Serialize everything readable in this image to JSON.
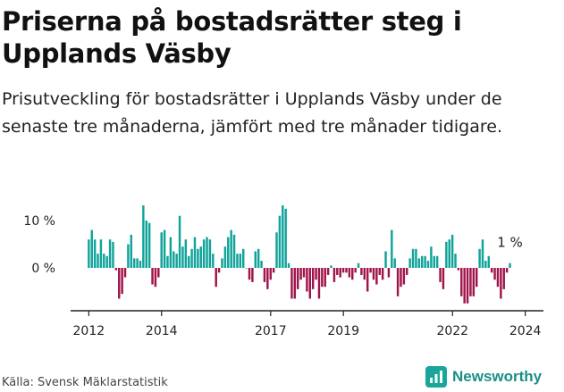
{
  "title": "Priserna på bostadsrätter steg i Upplands Väsby",
  "subtitle": "Prisutveckling för bostadsrätter i Upplands Väsby under de senaste tre månaderna, jämfört med tre månader tidigare.",
  "source": "Källa: Svensk Mäklarstatistik",
  "brand": "Newsworthy",
  "colors": {
    "positive": "#0fa39a",
    "negative": "#a0144a",
    "axis": "#222222",
    "brand": "#1aa59b"
  },
  "chart_data": {
    "type": "bar",
    "title": "Priserna på bostadsrätter steg i Upplands Väsby",
    "ylabel": "",
    "xlabel": "",
    "ylim": [
      -9,
      15
    ],
    "y_ticks": [
      0,
      10
    ],
    "y_tick_labels": [
      "0 %",
      "10 %"
    ],
    "x_range": [
      2011.5,
      2024.5
    ],
    "x_ticks": [
      2012,
      2014,
      2017,
      2019,
      2022,
      2024
    ],
    "x_tick_labels": [
      "2012",
      "2014",
      "2017",
      "2019",
      "2022",
      "2024"
    ],
    "last_label": "1 %",
    "start": 2012.0,
    "step": 0.0833,
    "values": [
      6,
      8,
      6,
      3,
      6,
      3,
      2.5,
      6,
      5.5,
      -0.5,
      -6.5,
      -5.5,
      -2,
      5,
      7,
      2,
      2,
      1.5,
      14,
      10,
      9.5,
      -3.5,
      -4,
      -2,
      7.5,
      8,
      2.5,
      6.5,
      3.5,
      3,
      11,
      4.5,
      6,
      2.5,
      4,
      6.5,
      4,
      4.5,
      6,
      6.5,
      6,
      3,
      -4,
      -1,
      2,
      4.5,
      6.5,
      8,
      7,
      3,
      3,
      4,
      0,
      -2.5,
      -3,
      3.5,
      4,
      1.5,
      -3,
      -4.5,
      -2.5,
      -1,
      7.5,
      11,
      14.5,
      12.5,
      1,
      -6.5,
      -6.5,
      -4.5,
      -2.5,
      -2,
      -5,
      -6.5,
      -4.5,
      -2.5,
      -6.5,
      -4,
      -4,
      -1.5,
      0.5,
      -3,
      -1.5,
      -2,
      -1,
      -1,
      -2,
      -2.5,
      -1,
      1,
      -1.5,
      -2.5,
      -5,
      -1,
      -2.5,
      -3.5,
      -1.5,
      -2.5,
      3.5,
      -2,
      8,
      2,
      -6,
      -4,
      -3.5,
      -1.5,
      2,
      4,
      4,
      2,
      2.5,
      2.5,
      1.5,
      4.5,
      2.5,
      2.5,
      -3,
      -4.5,
      5.5,
      6,
      7,
      3,
      -0.5,
      -6,
      -7.5,
      -7.5,
      -6,
      -6,
      -4,
      4,
      6,
      1.5,
      2.5,
      -1,
      -2.5,
      -4,
      -6.5,
      -4.5,
      -1,
      1
    ]
  }
}
